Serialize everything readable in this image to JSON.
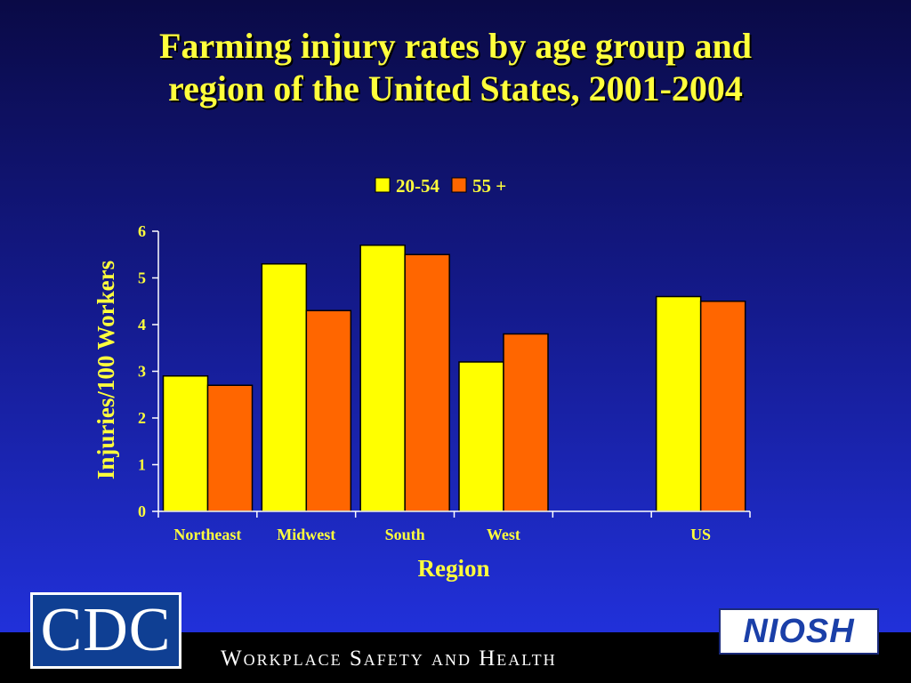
{
  "slide": {
    "title_lines": [
      "Farming injury rates by age group and",
      "region of the United States, 2001-2004"
    ],
    "footer": "Workplace Safety and Health",
    "logo_left": "CDC",
    "logo_right": "NIOSH"
  },
  "chart_data": {
    "type": "bar",
    "title": "",
    "xlabel": "Region",
    "ylabel": "Injuries/100 Workers",
    "categories": [
      "Northeast",
      "Midwest",
      "South",
      "West",
      "",
      "US"
    ],
    "series": [
      {
        "name": "20-54",
        "values": [
          2.9,
          5.3,
          5.7,
          3.2,
          null,
          4.6
        ],
        "color": "#ffff00"
      },
      {
        "name": "55 +",
        "values": [
          2.7,
          4.3,
          5.5,
          3.8,
          null,
          4.5
        ],
        "color": "#ff6600"
      }
    ],
    "ylim": [
      0,
      6
    ],
    "yticks": [
      "0",
      "1",
      "2",
      "3",
      "4",
      "5",
      "6"
    ],
    "legend_position": "top-center",
    "grid": false,
    "colors": {
      "text": "#ffff3c",
      "axis": "#ffffff",
      "bar_outline": "#000000"
    }
  }
}
